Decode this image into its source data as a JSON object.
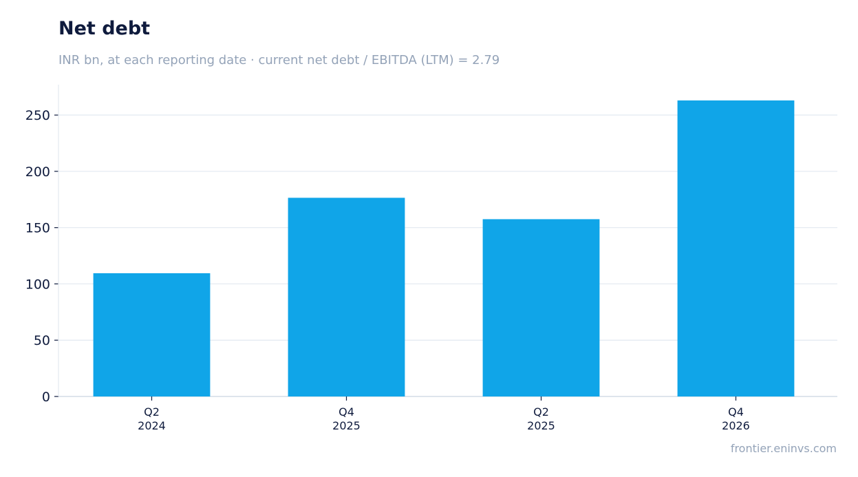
{
  "header": {
    "title": "Net debt",
    "subtitle": "INR bn, at each reporting date · current net debt / EBITDA (LTM) = 2.79"
  },
  "footer": {
    "source": "frontier.eninvs.com"
  },
  "colors": {
    "bar": "#10a5e8",
    "title": "#0f1b3d",
    "muted": "#94a3b8",
    "grid": "#e2e8f0",
    "axis": "#cbd5e1",
    "tick_text": "#0f1b3d"
  },
  "chart_data": {
    "type": "bar",
    "categories": [
      [
        "Q2",
        "2024"
      ],
      [
        "Q4",
        "2025"
      ],
      [
        "Q2",
        "2025"
      ],
      [
        "Q4",
        "2026"
      ]
    ],
    "values": [
      109.5,
      176.5,
      157.5,
      263
    ],
    "title": "Net debt",
    "subtitle": "INR bn, at each reporting date · current net debt / EBITDA (LTM) = 2.79",
    "xlabel": "",
    "ylabel": "",
    "ylim": [
      0,
      277
    ],
    "yticks": [
      0,
      50,
      100,
      150,
      200,
      250
    ],
    "grid": true,
    "legend": false
  }
}
